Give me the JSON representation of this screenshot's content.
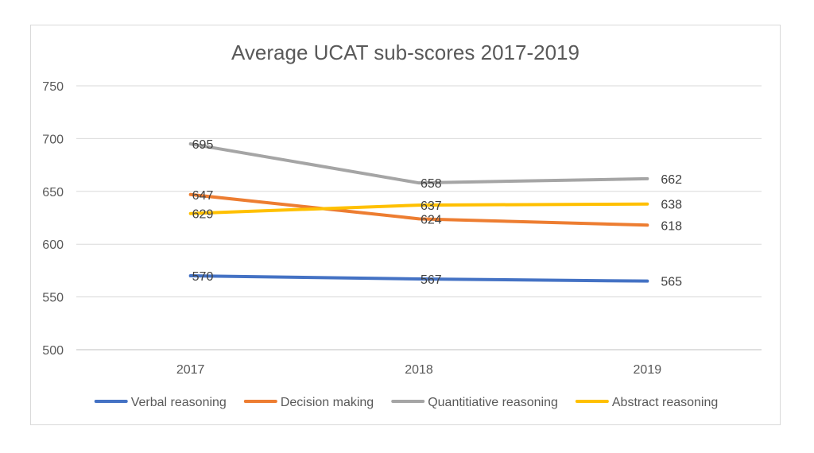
{
  "chart_data": {
    "type": "line",
    "title": "Average UCAT sub-scores 2017-2019",
    "xlabel": "",
    "ylabel": "",
    "categories": [
      "2017",
      "2018",
      "2019"
    ],
    "ylim": [
      500,
      750
    ],
    "yticks": [
      "500",
      "550",
      "600",
      "650",
      "700",
      "750"
    ],
    "grid": true,
    "legend_position": "bottom",
    "series": [
      {
        "name": "Verbal reasoning",
        "values": [
          570,
          567,
          565
        ],
        "color": "#4472c4"
      },
      {
        "name": "Decision making",
        "values": [
          647,
          624,
          618
        ],
        "color": "#ed7d31"
      },
      {
        "name": "Quantitiative reasoning",
        "values": [
          695,
          658,
          662
        ],
        "color": "#a5a5a5"
      },
      {
        "name": "Abstract reasoning",
        "values": [
          629,
          637,
          638
        ],
        "color": "#ffc000"
      }
    ]
  }
}
